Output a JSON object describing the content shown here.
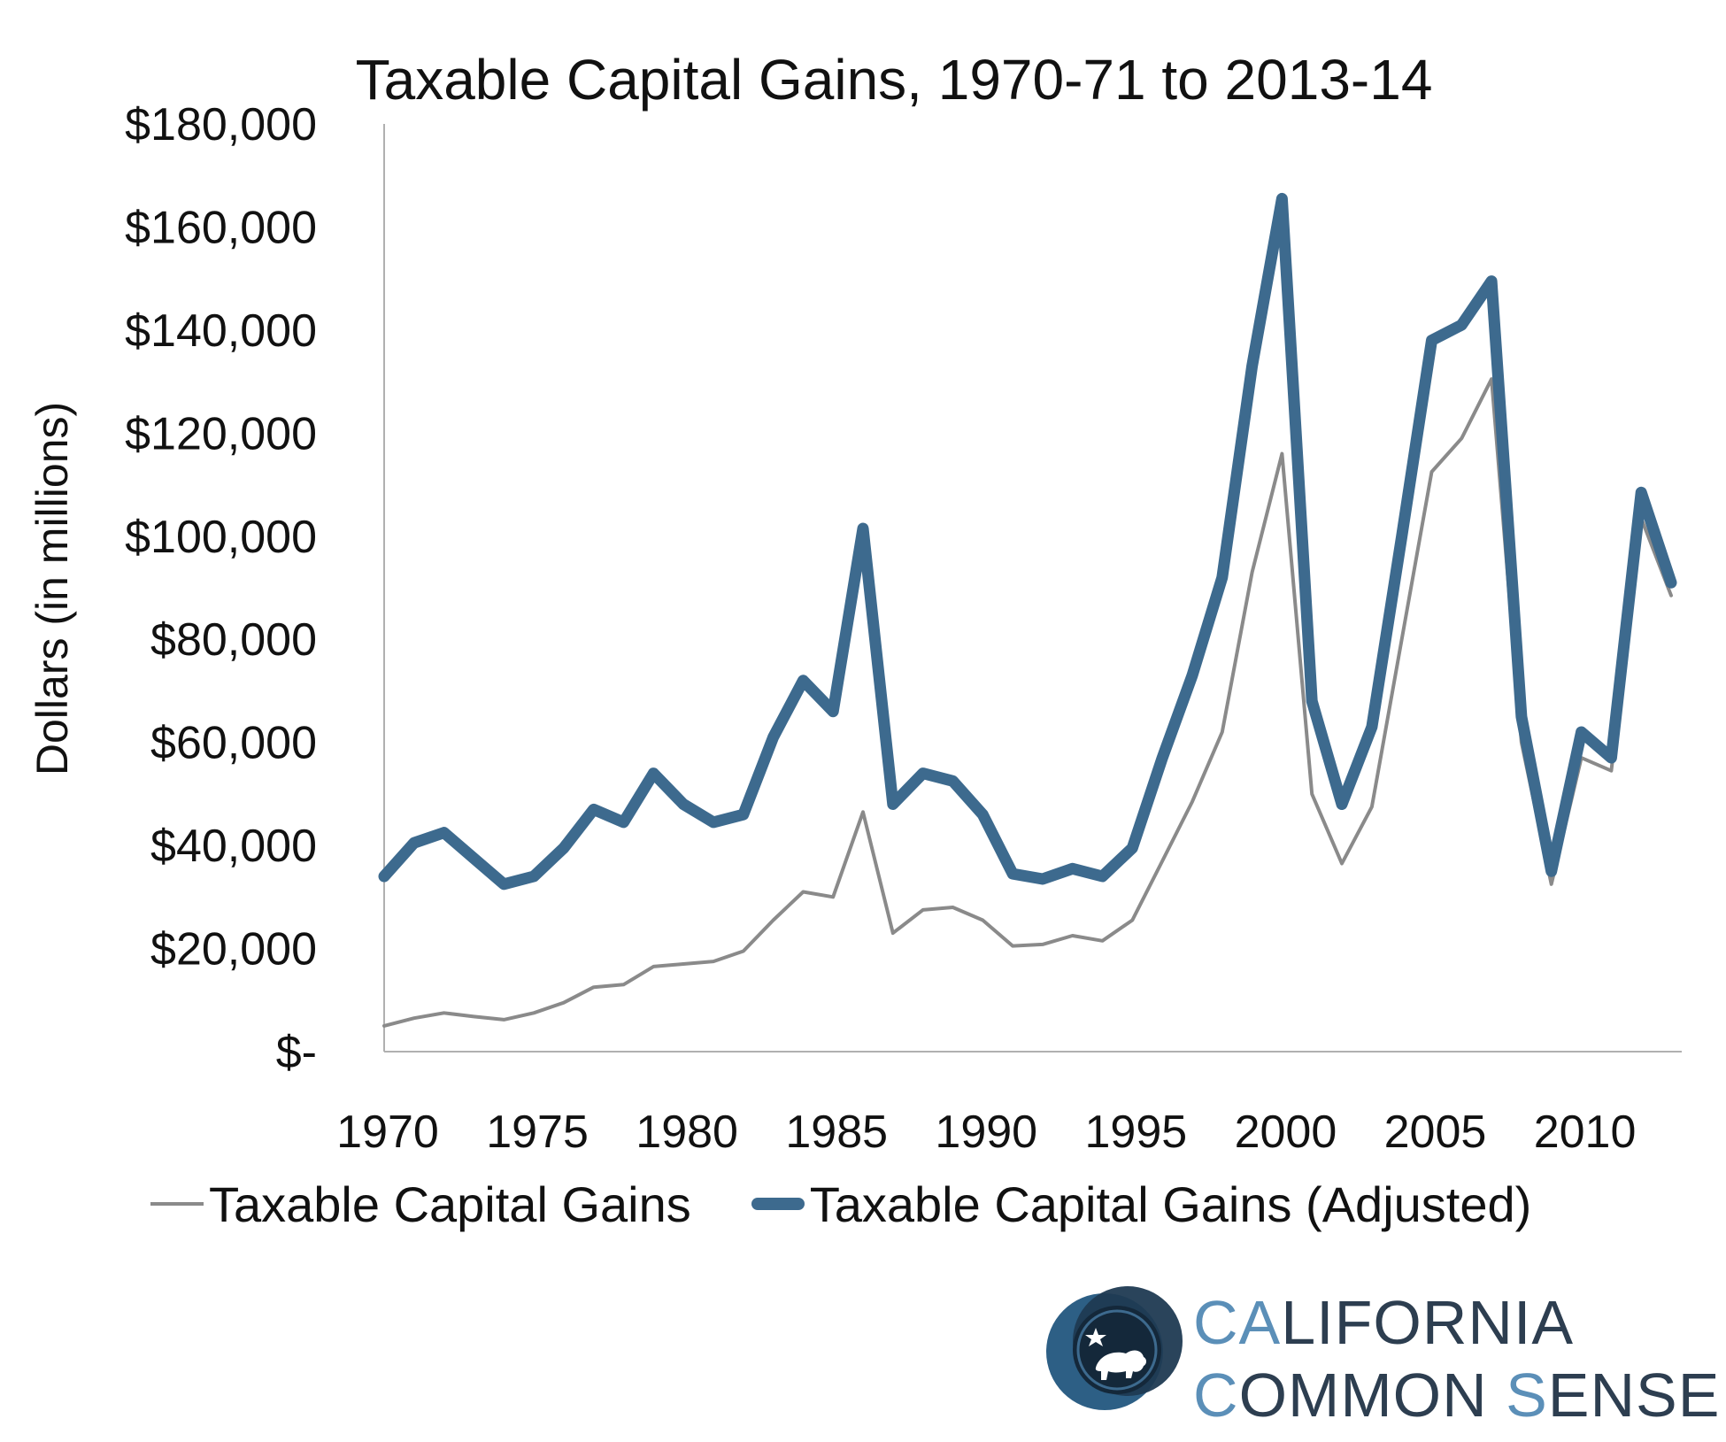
{
  "chart_data": {
    "type": "line",
    "title": "Taxable Capital Gains, 1970-71 to 2013-14",
    "ylabel": "Dollars (in millions)",
    "xlabel": "",
    "xlim": [
      1970,
      2013
    ],
    "ylim": [
      0,
      180000
    ],
    "x_ticks": [
      1970,
      1975,
      1980,
      1985,
      1990,
      1995,
      2000,
      2005,
      2010
    ],
    "x_tick_labels": [
      "1970",
      "1975",
      "1980",
      "1985",
      "1990",
      "1995",
      "2000",
      "2005",
      "2010"
    ],
    "y_ticks": [
      0,
      20000,
      40000,
      60000,
      80000,
      100000,
      120000,
      140000,
      160000,
      180000
    ],
    "y_tick_labels": [
      "$-",
      "$20,000",
      "$40,000",
      "$60,000",
      "$80,000",
      "$100,000",
      "$120,000",
      "$140,000",
      "$160,000",
      "$180,000"
    ],
    "grid": false,
    "legend_position": "bottom",
    "x": [
      1970,
      1971,
      1972,
      1973,
      1974,
      1975,
      1976,
      1977,
      1978,
      1979,
      1980,
      1981,
      1982,
      1983,
      1984,
      1985,
      1986,
      1987,
      1988,
      1989,
      1990,
      1991,
      1992,
      1993,
      1994,
      1995,
      1996,
      1997,
      1998,
      1999,
      2000,
      2001,
      2002,
      2003,
      2004,
      2005,
      2006,
      2007,
      2008,
      2009,
      2010,
      2011,
      2012,
      2013
    ],
    "series": [
      {
        "name": "Taxable Capital Gains",
        "color": "#8a8a8a",
        "values": [
          5000,
          6500,
          7500,
          6800,
          6200,
          7500,
          9500,
          12500,
          13000,
          16500,
          17000,
          17500,
          19500,
          25500,
          31000,
          30000,
          46500,
          23000,
          27500,
          28000,
          25500,
          20500,
          20800,
          22500,
          21500,
          25500,
          37000,
          48500,
          62000,
          93000,
          116000,
          50000,
          36500,
          47500,
          80000,
          112500,
          119000,
          130500,
          60000,
          32500,
          57000,
          54500,
          103500,
          88500
        ]
      },
      {
        "name": "Taxable Capital Gains (Adjusted)",
        "color": "#3d6a8e",
        "values": [
          34000,
          40500,
          42500,
          37500,
          32500,
          34000,
          39500,
          47000,
          44500,
          54000,
          48000,
          44500,
          46000,
          61000,
          72000,
          66000,
          101500,
          48000,
          54000,
          52500,
          46000,
          34500,
          33500,
          35500,
          34000,
          39500,
          57000,
          73000,
          92000,
          133000,
          165500,
          68000,
          48000,
          63000,
          100000,
          138000,
          141000,
          149500,
          65000,
          35000,
          62000,
          57000,
          108500,
          91000
        ]
      }
    ]
  },
  "logo": {
    "line1_accent": "CA",
    "line1_rest": "LIFORNIA",
    "line2_accent1": "C",
    "line2_mid": "OMMON ",
    "line2_accent2": "S",
    "line2_rest": "ENSE"
  },
  "colors": {
    "accent": "#3d6a8e",
    "gray_series": "#8a8a8a",
    "logo_dark": "#1f3a52",
    "logo_light": "#5b8fb8"
  }
}
